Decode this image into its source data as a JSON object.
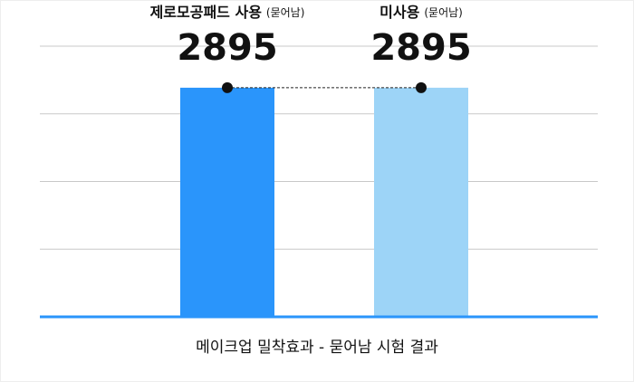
{
  "chart_data": {
    "type": "bar",
    "title": "메이크업 밀착효과 - 묻어남 시험 결과",
    "categories": [
      "제로모공패드 사용",
      "미사용"
    ],
    "category_notes": [
      "(묻어남)",
      "(묻어남)"
    ],
    "values": [
      2895,
      2895
    ],
    "colors": [
      "#2a95fb",
      "#9dd4f7"
    ],
    "label_color": "#2a95fb",
    "ylim": [
      0,
      3420
    ],
    "yticks": [
      0,
      855,
      1710,
      2565,
      3420
    ],
    "grid": true
  }
}
